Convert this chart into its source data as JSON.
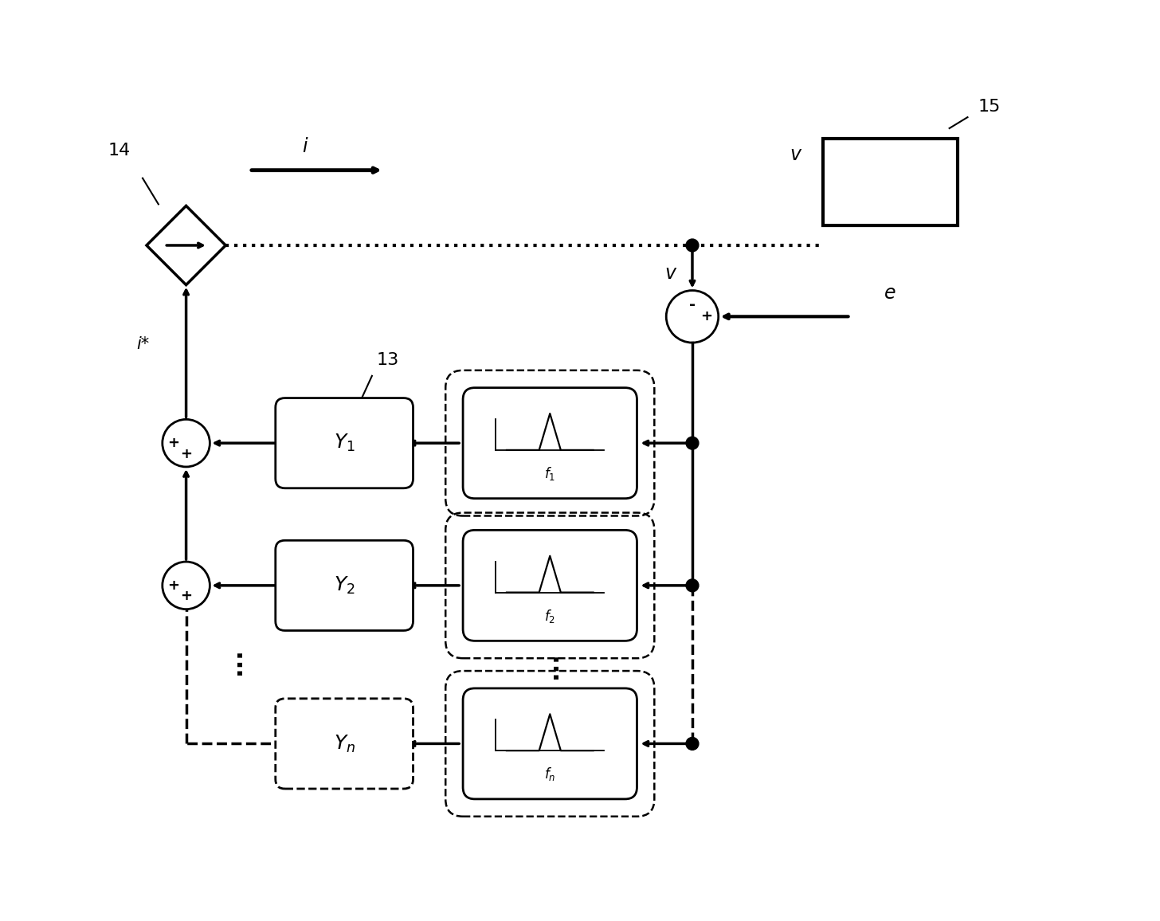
{
  "bg_color": "#ffffff",
  "line_color": "#000000",
  "line_width": 2.0,
  "arrow_lw": 2.5,
  "node14_label": "14",
  "node15_label": "15",
  "node13_label": "13",
  "label_i": "i",
  "label_v": "v",
  "label_e": "e",
  "label_istar": "i*",
  "label_Y1": "$Y_1$",
  "label_Y2": "$Y_2$",
  "label_Yn": "$Y_n$",
  "label_f1": "$f_1$",
  "label_f2": "$f_2$",
  "label_fn": "$f_n$",
  "label_v_signal": "v",
  "label_dots": "..."
}
